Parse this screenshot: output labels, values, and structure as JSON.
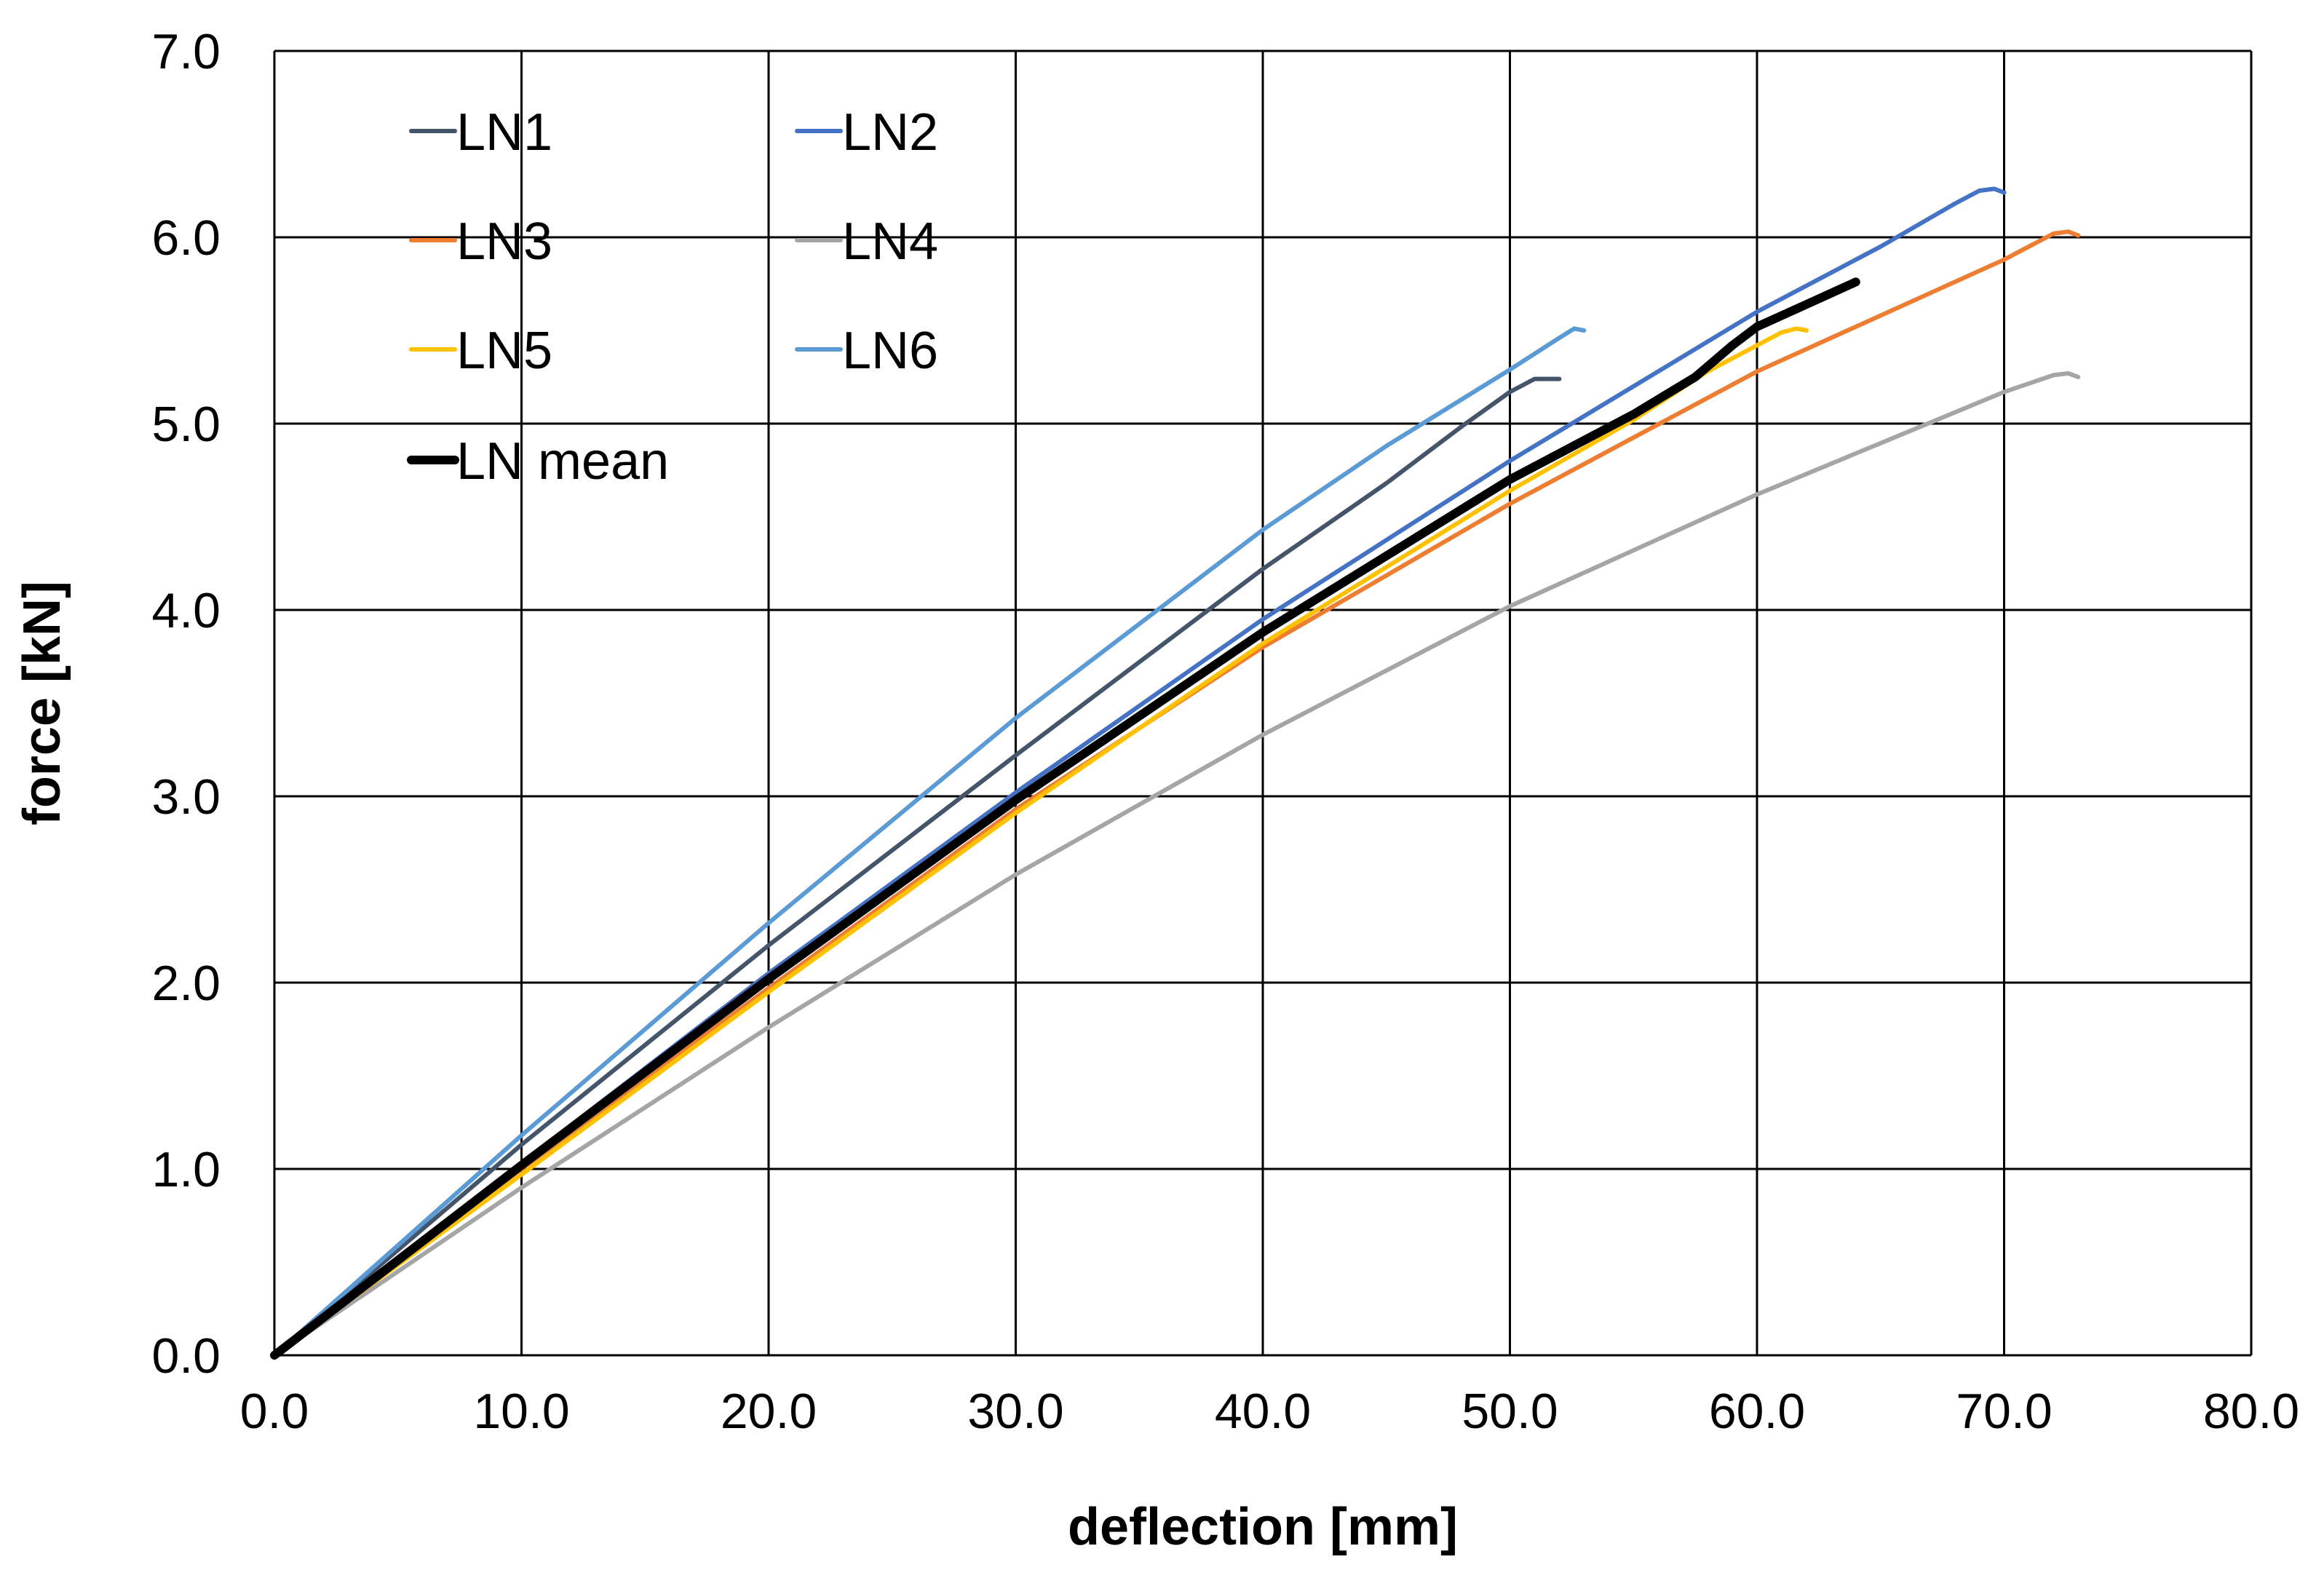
{
  "chart_data": {
    "type": "line",
    "title": "",
    "xlabel": "deflection [mm]",
    "ylabel": "force [kN]",
    "xlim": [
      0,
      80
    ],
    "ylim": [
      0,
      7
    ],
    "xticks": [
      0,
      10,
      20,
      30,
      40,
      50,
      60,
      70,
      80
    ],
    "yticks": [
      0,
      1,
      2,
      3,
      4,
      5,
      6,
      7
    ],
    "xtick_labels": [
      "0.0",
      "10.0",
      "20.0",
      "30.0",
      "40.0",
      "50.0",
      "60.0",
      "70.0",
      "80.0"
    ],
    "ytick_labels": [
      "0.0",
      "1.0",
      "2.0",
      "3.0",
      "4.0",
      "5.0",
      "6.0",
      "7.0"
    ],
    "grid": true,
    "legend_position": "top-left",
    "series": [
      {
        "name": "LN1",
        "color": "#44546a",
        "width": 6,
        "points": [
          [
            0,
            0
          ],
          [
            10,
            1.13
          ],
          [
            20,
            2.2
          ],
          [
            30,
            3.22
          ],
          [
            40,
            4.22
          ],
          [
            45,
            4.68
          ],
          [
            48,
            4.98
          ],
          [
            50,
            5.17
          ],
          [
            51,
            5.24
          ],
          [
            52,
            5.24
          ]
        ]
      },
      {
        "name": "LN2",
        "color": "#4472c4",
        "width": 6,
        "points": [
          [
            0,
            0
          ],
          [
            10,
            1.03
          ],
          [
            20,
            2.05
          ],
          [
            30,
            3.02
          ],
          [
            40,
            3.95
          ],
          [
            50,
            4.8
          ],
          [
            60,
            5.6
          ],
          [
            65,
            5.95
          ],
          [
            68,
            6.18
          ],
          [
            69,
            6.25
          ],
          [
            69.6,
            6.26
          ],
          [
            70,
            6.24
          ]
        ]
      },
      {
        "name": "LN3",
        "color": "#ed7d31",
        "width": 6,
        "points": [
          [
            0,
            0
          ],
          [
            10,
            1.0
          ],
          [
            20,
            1.97
          ],
          [
            30,
            2.93
          ],
          [
            40,
            3.8
          ],
          [
            50,
            4.57
          ],
          [
            60,
            5.28
          ],
          [
            70,
            5.88
          ],
          [
            72,
            6.02
          ],
          [
            72.6,
            6.03
          ],
          [
            73,
            6.01
          ]
        ]
      },
      {
        "name": "LN4",
        "color": "#a5a5a5",
        "width": 6,
        "points": [
          [
            0,
            0
          ],
          [
            10,
            0.9
          ],
          [
            20,
            1.76
          ],
          [
            30,
            2.58
          ],
          [
            40,
            3.33
          ],
          [
            50,
            4.02
          ],
          [
            60,
            4.62
          ],
          [
            70,
            5.17
          ],
          [
            72,
            5.26
          ],
          [
            72.6,
            5.27
          ],
          [
            73,
            5.25
          ]
        ]
      },
      {
        "name": "LN5",
        "color": "#ffc000",
        "width": 6,
        "points": [
          [
            0,
            0
          ],
          [
            10,
            0.97
          ],
          [
            20,
            1.95
          ],
          [
            30,
            2.91
          ],
          [
            40,
            3.82
          ],
          [
            50,
            4.64
          ],
          [
            55,
            5.02
          ],
          [
            58,
            5.28
          ],
          [
            60,
            5.42
          ],
          [
            61,
            5.49
          ],
          [
            61.6,
            5.51
          ],
          [
            62,
            5.5
          ]
        ]
      },
      {
        "name": "LN6",
        "color": "#5b9bd5",
        "width": 6,
        "points": [
          [
            0,
            0
          ],
          [
            10,
            1.18
          ],
          [
            20,
            2.32
          ],
          [
            30,
            3.42
          ],
          [
            40,
            4.43
          ],
          [
            45,
            4.88
          ],
          [
            50,
            5.29
          ],
          [
            52,
            5.46
          ],
          [
            52.6,
            5.51
          ],
          [
            53,
            5.5
          ]
        ]
      },
      {
        "name": "LN mean",
        "color": "#000000",
        "width": 12,
        "points": [
          [
            0,
            0
          ],
          [
            10,
            1.02
          ],
          [
            20,
            2.02
          ],
          [
            30,
            2.98
          ],
          [
            40,
            3.88
          ],
          [
            50,
            4.7
          ],
          [
            55,
            5.05
          ],
          [
            57.5,
            5.25
          ],
          [
            59,
            5.42
          ],
          [
            60,
            5.52
          ],
          [
            62,
            5.64
          ],
          [
            64,
            5.76
          ]
        ]
      }
    ]
  }
}
